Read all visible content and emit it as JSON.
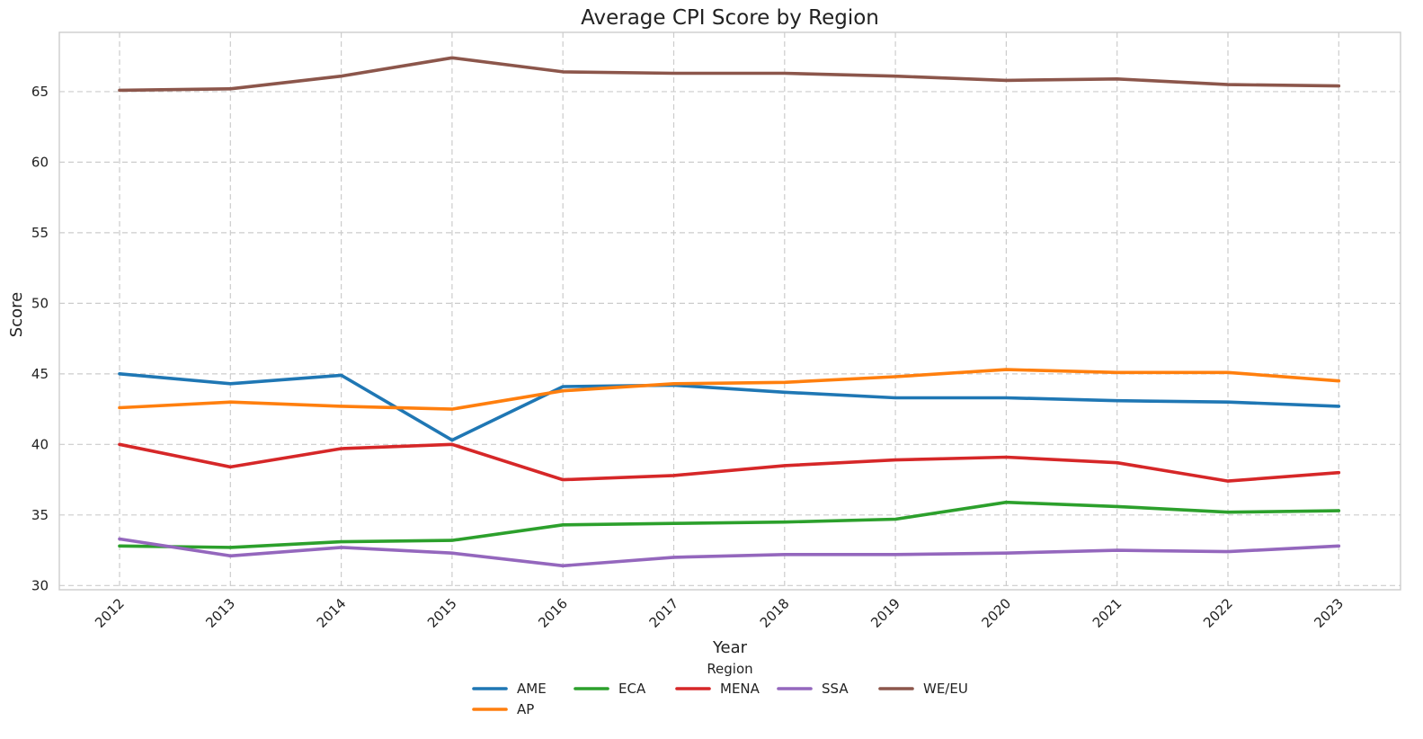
{
  "chart_data": {
    "type": "line",
    "title": "Average CPI Score by Region",
    "xlabel": "Year",
    "ylabel": "Score",
    "x": [
      "2012",
      "2013",
      "2014",
      "2015",
      "2016",
      "2017",
      "2018",
      "2019",
      "2020",
      "2021",
      "2022",
      "2023"
    ],
    "ylim": [
      29.7,
      69.2
    ],
    "yticks": [
      30,
      35,
      40,
      45,
      50,
      55,
      60,
      65
    ],
    "grid": true,
    "legend": {
      "title": "Region",
      "placement": "bottom-center",
      "order": [
        "AME",
        "ECA",
        "MENA",
        "SSA",
        "WE/EU",
        "AP"
      ]
    },
    "series": [
      {
        "name": "AME",
        "color": "#1f77b4",
        "values": [
          45.0,
          44.3,
          44.9,
          40.3,
          44.1,
          44.2,
          43.7,
          43.3,
          43.3,
          43.1,
          43.0,
          42.7
        ]
      },
      {
        "name": "AP",
        "color": "#ff7f0e",
        "values": [
          42.6,
          43.0,
          42.7,
          42.5,
          43.8,
          44.3,
          44.4,
          44.8,
          45.3,
          45.1,
          45.1,
          44.5
        ]
      },
      {
        "name": "ECA",
        "color": "#2ca02c",
        "values": [
          32.8,
          32.7,
          33.1,
          33.2,
          34.3,
          34.4,
          34.5,
          34.7,
          35.9,
          35.6,
          35.2,
          35.3
        ]
      },
      {
        "name": "MENA",
        "color": "#d62728",
        "values": [
          40.0,
          38.4,
          39.7,
          40.0,
          37.5,
          37.8,
          38.5,
          38.9,
          39.1,
          38.7,
          37.4,
          38.0
        ]
      },
      {
        "name": "SSA",
        "color": "#9467bd",
        "values": [
          33.3,
          32.1,
          32.7,
          32.3,
          31.4,
          32.0,
          32.2,
          32.2,
          32.3,
          32.5,
          32.4,
          32.8
        ]
      },
      {
        "name": "WE/EU",
        "color": "#8c564b",
        "values": [
          65.1,
          65.2,
          66.1,
          67.4,
          66.4,
          66.3,
          66.3,
          66.1,
          65.8,
          65.9,
          65.5,
          65.4
        ]
      }
    ]
  }
}
